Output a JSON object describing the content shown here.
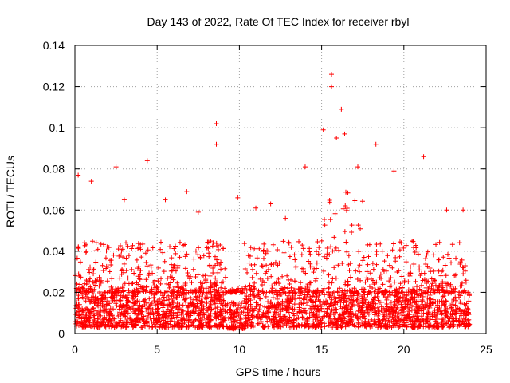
{
  "chart_data": {
    "type": "scatter",
    "title": "Day 143 of 2022, Rate Of TEC Index for receiver rbyl",
    "xlabel": "GPS time / hours",
    "ylabel": "ROTI / TECUs",
    "xlim": [
      0,
      25
    ],
    "ylim": [
      0,
      0.14
    ],
    "xticks": [
      "0",
      "5",
      "10",
      "15",
      "20",
      "25"
    ],
    "yticks": [
      "0",
      "0.02",
      "0.04",
      "0.06",
      "0.08",
      "0.1",
      "0.12",
      "0.14"
    ],
    "grid": true,
    "marker": "+",
    "color": "#ff0000",
    "series": [
      {
        "name": "ROTI",
        "x_range_hours": [
          0,
          24
        ],
        "baseline_band": [
          0.003,
          0.02
        ],
        "peaks": [
          {
            "x": 0.2,
            "y": 0.077
          },
          {
            "x": 1.0,
            "y": 0.074
          },
          {
            "x": 2.5,
            "y": 0.081
          },
          {
            "x": 3.0,
            "y": 0.065
          },
          {
            "x": 4.4,
            "y": 0.084
          },
          {
            "x": 5.5,
            "y": 0.065
          },
          {
            "x": 6.8,
            "y": 0.069
          },
          {
            "x": 7.5,
            "y": 0.059
          },
          {
            "x": 8.6,
            "y": 0.102
          },
          {
            "x": 8.6,
            "y": 0.092
          },
          {
            "x": 9.9,
            "y": 0.066
          },
          {
            "x": 11.0,
            "y": 0.061
          },
          {
            "x": 11.9,
            "y": 0.063
          },
          {
            "x": 12.8,
            "y": 0.056
          },
          {
            "x": 14.0,
            "y": 0.081
          },
          {
            "x": 15.1,
            "y": 0.099
          },
          {
            "x": 15.6,
            "y": 0.126
          },
          {
            "x": 15.6,
            "y": 0.12
          },
          {
            "x": 15.9,
            "y": 0.095
          },
          {
            "x": 16.2,
            "y": 0.109
          },
          {
            "x": 16.4,
            "y": 0.097
          },
          {
            "x": 17.2,
            "y": 0.081
          },
          {
            "x": 18.3,
            "y": 0.092
          },
          {
            "x": 19.4,
            "y": 0.079
          },
          {
            "x": 20.5,
            "y": 0.045
          },
          {
            "x": 21.2,
            "y": 0.086
          },
          {
            "x": 22.6,
            "y": 0.06
          },
          {
            "x": 23.6,
            "y": 0.06
          }
        ]
      }
    ]
  }
}
